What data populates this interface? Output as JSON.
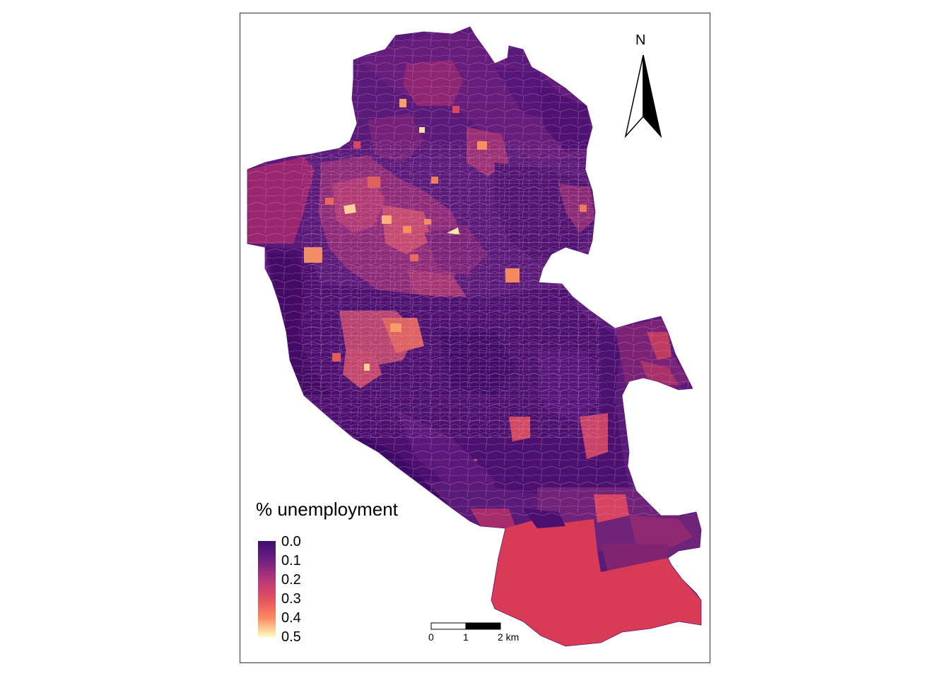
{
  "map": {
    "legend": {
      "title": "% unemployment",
      "labels": [
        "0.0",
        "0.1",
        "0.2",
        "0.3",
        "0.4",
        "0.5"
      ],
      "palette": [
        "#3b0f70",
        "#5c1a78",
        "#8c2981",
        "#b73779",
        "#de4968",
        "#f7705c",
        "#fe9f6d",
        "#fecf92",
        "#fcfdbf"
      ]
    },
    "north_arrow": {
      "label": "N"
    },
    "scale_bar": {
      "labels": [
        "0",
        "1",
        "2 km"
      ]
    },
    "colors": {
      "low": "#46106b",
      "mid": "#8a2a7a",
      "high": "#f27456",
      "peak": "#fce9a6",
      "south_region": "#d93a55"
    }
  }
}
